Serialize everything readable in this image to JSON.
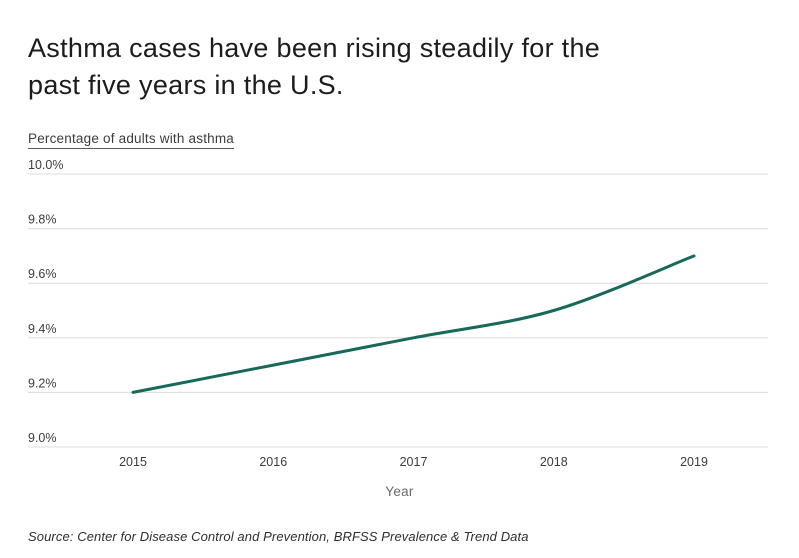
{
  "header": {
    "title": "Asthma cases have been rising steadily for the past five years in the U.S.",
    "title_lines": [
      "Asthma cases have been rising steadily for the",
      "past five years in the U.S."
    ],
    "subtitle": "Percentage of adults with asthma"
  },
  "chart_data": {
    "type": "line",
    "x": [
      "2015",
      "2016",
      "2017",
      "2018",
      "2019"
    ],
    "series": [
      {
        "name": "Percentage of adults with asthma",
        "values": [
          9.2,
          9.3,
          9.4,
          9.5,
          9.7
        ]
      }
    ],
    "title": "Asthma cases have been rising steadily for the past five years in the U.S.",
    "subtitle": "Percentage of adults with asthma",
    "xlabel": "Year",
    "ylabel": "Percentage of adults with asthma",
    "ylim": [
      9.0,
      10.0
    ],
    "ytick_step": 0.2,
    "grid": true,
    "legend": "none",
    "smooth": true,
    "line_color": "#17695a",
    "grid_color": "#dcdcdc",
    "line_width": 3
  },
  "axes": {
    "y_tick_labels": [
      "10.0%",
      "9.8%",
      "9.6%",
      "9.4%",
      "9.2%",
      "9.0%"
    ],
    "x_tick_labels": [
      "2015",
      "2016",
      "2017",
      "2018",
      "2019"
    ],
    "x_axis_title": "Year"
  },
  "footer": {
    "source": "Source: Center for Disease Control and Prevention, BRFSS Prevalence & Trend Data"
  }
}
